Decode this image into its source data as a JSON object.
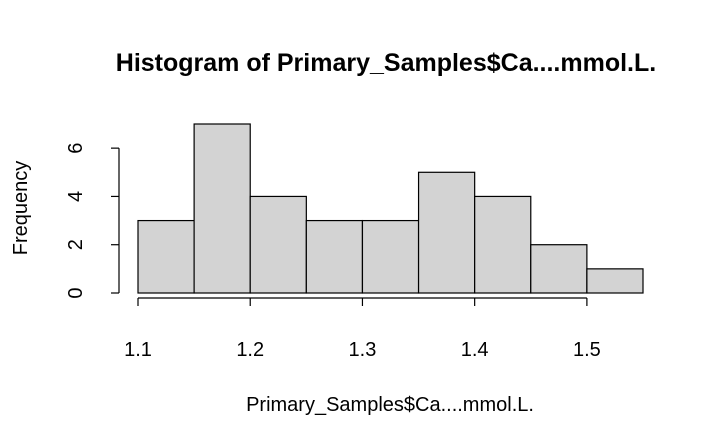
{
  "chart_data": {
    "type": "bar",
    "title": "Histogram of Primary_Samples$Ca....mmol.L.",
    "xlabel": "Primary_Samples$Ca....mmol.L.",
    "ylabel": "Frequency",
    "bins": [
      {
        "start": 1.1,
        "end": 1.15,
        "count": 3
      },
      {
        "start": 1.15,
        "end": 1.2,
        "count": 7
      },
      {
        "start": 1.2,
        "end": 1.25,
        "count": 4
      },
      {
        "start": 1.25,
        "end": 1.3,
        "count": 3
      },
      {
        "start": 1.3,
        "end": 1.35,
        "count": 3
      },
      {
        "start": 1.35,
        "end": 1.4,
        "count": 5
      },
      {
        "start": 1.4,
        "end": 1.45,
        "count": 4
      },
      {
        "start": 1.45,
        "end": 1.5,
        "count": 2
      },
      {
        "start": 1.5,
        "end": 1.55,
        "count": 1
      }
    ],
    "xlim": [
      1.1,
      1.55
    ],
    "ylim": [
      0,
      7
    ],
    "x_ticks": [
      "1.1",
      "1.2",
      "1.3",
      "1.4",
      "1.5"
    ],
    "y_ticks": [
      "0",
      "2",
      "4",
      "6"
    ],
    "grid": false,
    "bar_color": "#d3d3d3",
    "edge_color": "#000000"
  }
}
